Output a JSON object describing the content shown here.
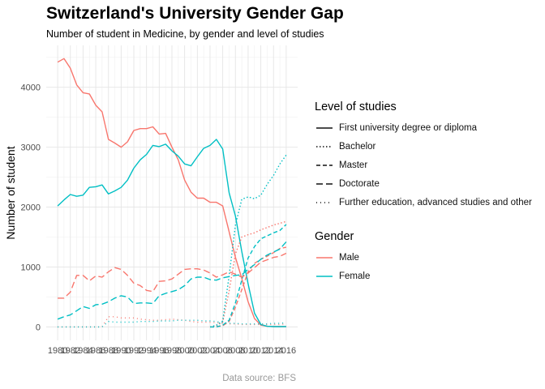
{
  "title": "Switzerland's University Gender Gap",
  "subtitle": "Number of student in Medicine, by gender and level of studies",
  "caption": "Data source: BFS",
  "colors": {
    "Male": "#f8766d",
    "Female": "#00bfc4",
    "grid": "#e5e5e5"
  },
  "legend": {
    "level_title": "Level of studies",
    "levels": [
      {
        "label": "First university degree or diploma",
        "dash": "solid"
      },
      {
        "label": "Bachelor",
        "dash": "dotted"
      },
      {
        "label": "Master",
        "dash": "dashed"
      },
      {
        "label": "Doctorate",
        "dash": "longdash"
      },
      {
        "label": "Further education, advanced studies and other",
        "dash": "sparse-dotted"
      }
    ],
    "gender_title": "Gender",
    "genders": [
      {
        "label": "Male",
        "color": "#f8766d"
      },
      {
        "label": "Female",
        "color": "#00bfc4"
      }
    ]
  },
  "chart_data": {
    "type": "line",
    "title": "Switzerland's University Gender Gap",
    "subtitle": "Number of student in Medicine, by gender and level of studies",
    "xlabel": "",
    "ylabel": "Number of student",
    "xlim": [
      1980,
      2016
    ],
    "ylim": [
      0,
      4500
    ],
    "x_ticks": [
      1980,
      1982,
      1984,
      1986,
      1988,
      1990,
      1992,
      1994,
      1996,
      1998,
      2000,
      2002,
      2004,
      2006,
      2008,
      2010,
      2012,
      2014,
      2016
    ],
    "y_ticks": [
      0,
      1000,
      2000,
      3000,
      4000
    ],
    "grid": true,
    "legend_position": "right",
    "series": [
      {
        "name": "Male - First university degree or diploma",
        "gender": "Male",
        "level": "First university degree or diploma",
        "x": [
          1980,
          1981,
          1982,
          1983,
          1984,
          1985,
          1986,
          1987,
          1988,
          1989,
          1990,
          1991,
          1992,
          1993,
          1994,
          1995,
          1996,
          1997,
          1998,
          1999,
          2000,
          2001,
          2002,
          2003,
          2004,
          2005,
          2006,
          2007,
          2008,
          2009,
          2010,
          2011,
          2012,
          2013,
          2014,
          2015,
          2016
        ],
        "y": [
          4420,
          4480,
          4320,
          4040,
          3910,
          3890,
          3700,
          3590,
          3130,
          3070,
          3000,
          3090,
          3280,
          3310,
          3310,
          3340,
          3220,
          3230,
          3000,
          2790,
          2450,
          2250,
          2150,
          2150,
          2080,
          2080,
          2020,
          1590,
          1160,
          810,
          420,
          140,
          30,
          10,
          5,
          5,
          5
        ]
      },
      {
        "name": "Female - First university degree or diploma",
        "gender": "Female",
        "level": "First university degree or diploma",
        "x": [
          1980,
          1981,
          1982,
          1983,
          1984,
          1985,
          1986,
          1987,
          1988,
          1989,
          1990,
          1991,
          1992,
          1993,
          1994,
          1995,
          1996,
          1997,
          1998,
          1999,
          2000,
          2001,
          2002,
          2003,
          2004,
          2005,
          2006,
          2007,
          2008,
          2009,
          2010,
          2011,
          2012,
          2013,
          2014,
          2015,
          2016
        ],
        "y": [
          2020,
          2120,
          2210,
          2180,
          2200,
          2330,
          2340,
          2370,
          2220,
          2270,
          2330,
          2450,
          2650,
          2790,
          2880,
          3030,
          3010,
          3050,
          2940,
          2850,
          2720,
          2690,
          2840,
          2980,
          3030,
          3130,
          2970,
          2240,
          1850,
          1260,
          720,
          230,
          40,
          10,
          5,
          5,
          5
        ]
      },
      {
        "name": "Male - Bachelor",
        "gender": "Male",
        "level": "Bachelor",
        "x": [
          2004,
          2005,
          2006,
          2007,
          2008,
          2009,
          2010,
          2011,
          2012,
          2013,
          2014,
          2015,
          2016
        ],
        "y": [
          0,
          20,
          80,
          600,
          1220,
          1500,
          1540,
          1570,
          1620,
          1660,
          1700,
          1730,
          1760
        ]
      },
      {
        "name": "Female - Bachelor",
        "gender": "Female",
        "level": "Bachelor",
        "x": [
          2004,
          2005,
          2006,
          2007,
          2008,
          2009,
          2010,
          2011,
          2012,
          2013,
          2014,
          2015,
          2016
        ],
        "y": [
          0,
          30,
          100,
          850,
          1700,
          2130,
          2170,
          2140,
          2200,
          2380,
          2530,
          2720,
          2870
        ]
      },
      {
        "name": "Male - Master",
        "gender": "Male",
        "level": "Master",
        "x": [
          2004,
          2005,
          2006,
          2007,
          2008,
          2009,
          2010,
          2011,
          2012,
          2013,
          2014,
          2015,
          2016
        ],
        "y": [
          0,
          0,
          20,
          90,
          330,
          620,
          920,
          1060,
          1130,
          1180,
          1240,
          1310,
          1330
        ]
      },
      {
        "name": "Female - Master",
        "gender": "Female",
        "level": "Master",
        "x": [
          2004,
          2005,
          2006,
          2007,
          2008,
          2009,
          2010,
          2011,
          2012,
          2013,
          2014,
          2015,
          2016
        ],
        "y": [
          0,
          0,
          30,
          110,
          400,
          780,
          1150,
          1340,
          1470,
          1520,
          1570,
          1610,
          1710
        ]
      },
      {
        "name": "Male - Doctorate",
        "gender": "Male",
        "level": "Doctorate",
        "x": [
          1980,
          1981,
          1982,
          1983,
          1984,
          1985,
          1986,
          1987,
          1988,
          1989,
          1990,
          1991,
          1992,
          1993,
          1994,
          1995,
          1996,
          1997,
          1998,
          1999,
          2000,
          2001,
          2002,
          2003,
          2004,
          2005,
          2006,
          2007,
          2008,
          2009,
          2010,
          2011,
          2012,
          2013,
          2014,
          2015,
          2016
        ],
        "y": [
          480,
          480,
          580,
          860,
          860,
          770,
          850,
          830,
          920,
          990,
          960,
          860,
          730,
          690,
          610,
          590,
          760,
          770,
          800,
          880,
          960,
          970,
          970,
          950,
          900,
          830,
          870,
          920,
          880,
          830,
          900,
          990,
          1080,
          1120,
          1160,
          1180,
          1230
        ]
      },
      {
        "name": "Female - Doctorate",
        "gender": "Female",
        "level": "Doctorate",
        "x": [
          1980,
          1981,
          1982,
          1983,
          1984,
          1985,
          1986,
          1987,
          1988,
          1989,
          1990,
          1991,
          1992,
          1993,
          1994,
          1995,
          1996,
          1997,
          1998,
          1999,
          2000,
          2001,
          2002,
          2003,
          2004,
          2005,
          2006,
          2007,
          2008,
          2009,
          2010,
          2011,
          2012,
          2013,
          2014,
          2015,
          2016
        ],
        "y": [
          130,
          170,
          200,
          270,
          340,
          310,
          370,
          380,
          420,
          480,
          520,
          500,
          390,
          400,
          400,
          390,
          520,
          560,
          590,
          620,
          690,
          800,
          830,
          830,
          790,
          780,
          820,
          840,
          860,
          870,
          960,
          1040,
          1130,
          1200,
          1250,
          1300,
          1420
        ]
      },
      {
        "name": "Male - Further education, advanced studies and other",
        "gender": "Male",
        "level": "Further education, advanced studies and other",
        "x": [
          1980,
          1981,
          1982,
          1983,
          1984,
          1985,
          1986,
          1987,
          1988,
          1989,
          1990,
          1991,
          1992,
          1993,
          1994,
          1995,
          1996,
          1997,
          1998,
          1999,
          2000,
          2001,
          2002,
          2003,
          2004,
          2005,
          2006,
          2007,
          2008,
          2009,
          2010,
          2011,
          2012,
          2013,
          2014,
          2015,
          2016
        ],
        "y": [
          0,
          0,
          0,
          0,
          0,
          0,
          0,
          0,
          170,
          170,
          150,
          150,
          150,
          130,
          120,
          110,
          110,
          120,
          130,
          120,
          110,
          90,
          80,
          80,
          80,
          70,
          60,
          50,
          50,
          40,
          40,
          40,
          40,
          40,
          40,
          40,
          50
        ]
      },
      {
        "name": "Female - Further education, advanced studies and other",
        "gender": "Female",
        "level": "Further education, advanced studies and other",
        "x": [
          1980,
          1981,
          1982,
          1983,
          1984,
          1985,
          1986,
          1987,
          1988,
          1989,
          1990,
          1991,
          1992,
          1993,
          1994,
          1995,
          1996,
          1997,
          1998,
          1999,
          2000,
          2001,
          2002,
          2003,
          2004,
          2005,
          2006,
          2007,
          2008,
          2009,
          2010,
          2011,
          2012,
          2013,
          2014,
          2015,
          2016
        ],
        "y": [
          0,
          0,
          0,
          0,
          0,
          0,
          0,
          0,
          90,
          80,
          80,
          80,
          80,
          90,
          90,
          90,
          100,
          100,
          100,
          110,
          110,
          110,
          110,
          100,
          100,
          90,
          70,
          60,
          60,
          50,
          50,
          50,
          50,
          50,
          60,
          60,
          70
        ]
      }
    ]
  }
}
